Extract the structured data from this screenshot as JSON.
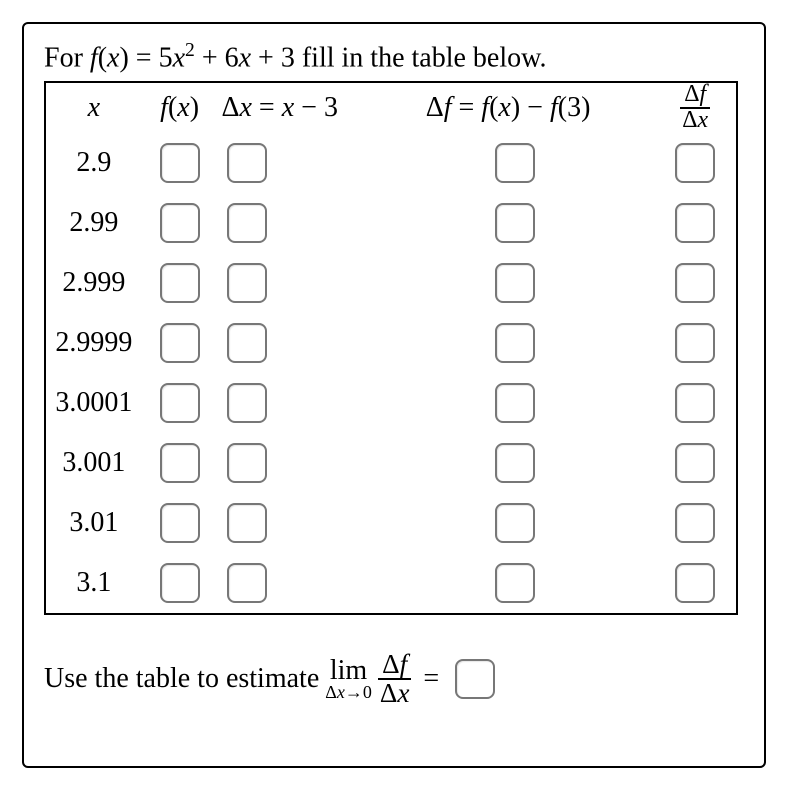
{
  "prompt_parts": {
    "for": "For ",
    "f": "f",
    "open": "(",
    "x": "x",
    "close": ")",
    "eq": " = ",
    "coef1": "5",
    "exp": "2",
    "plus": " + ",
    "coef2": "6",
    "x2": "x",
    "coef3": " + 3",
    "trail": " fill in the table below."
  },
  "headers": {
    "x": "x",
    "fx": "f(x)",
    "dx_left": "Δx = x",
    "dx_minus": " − ",
    "dx_right": "3",
    "df_left": "Δf = f(x)",
    "df_minus": " − ",
    "df_right": "f(3)",
    "ratio_num": "Δf",
    "ratio_den": "Δx"
  },
  "rows": [
    {
      "x": "2.9"
    },
    {
      "x": "2.99"
    },
    {
      "x": "2.999"
    },
    {
      "x": "2.9999"
    },
    {
      "x": "3.0001"
    },
    {
      "x": "3.001"
    },
    {
      "x": "3.01"
    },
    {
      "x": "3.1"
    }
  ],
  "limit": {
    "label": "Use the table to estimate ",
    "lim": "lim",
    "under_l": "Δx",
    "arrow": "→",
    "under_r": "0",
    "num": "Δf",
    "den": "Δx",
    "eq": "="
  },
  "style": {
    "box_border": "#777",
    "text_color": "#000000",
    "bg": "#ffffff"
  }
}
